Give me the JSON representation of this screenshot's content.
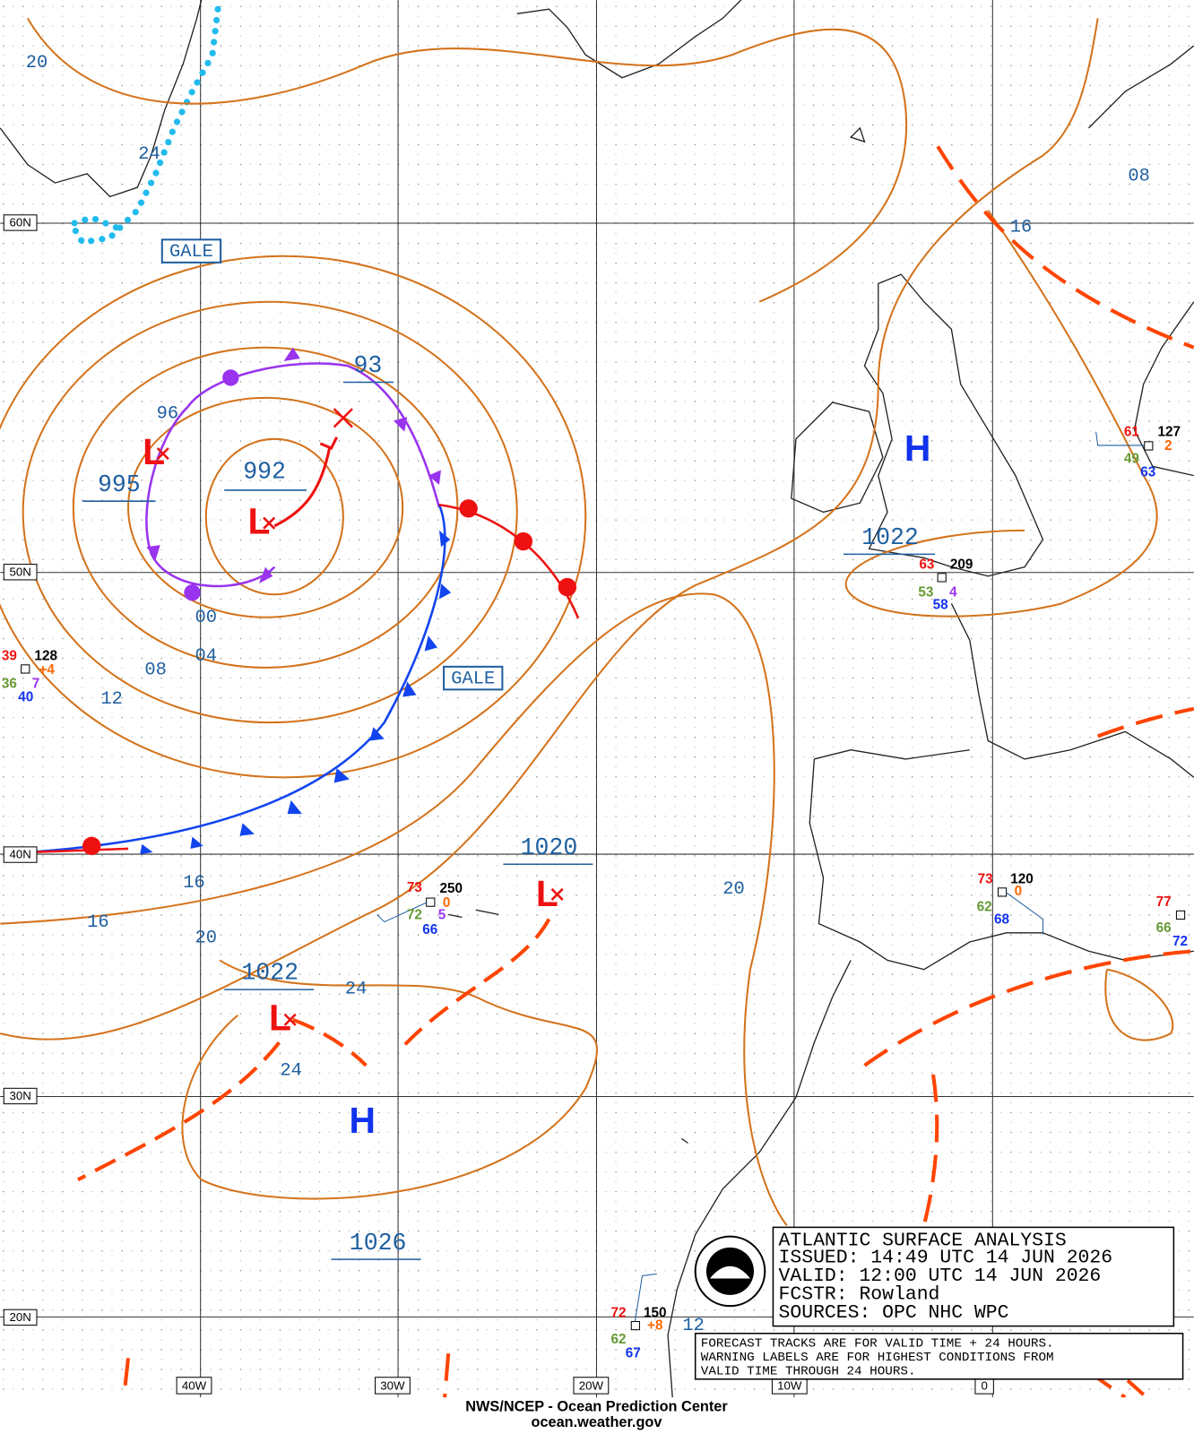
{
  "title_block": [
    "ATLANTIC SURFACE ANALYSIS",
    "ISSUED:  14:49 UTC 14 JUN 2026",
    "VALID:  12:00 UTC 14 JUN 2026",
    "FCSTR:  Rowland",
    "SOURCES:  OPC NHC WPC"
  ],
  "note": [
    "FORECAST TRACKS ARE FOR VALID TIME + 24 HOURS.",
    "WARNING LABELS ARE FOR HIGHEST CONDITIONS FROM",
    "VALID TIME THROUGH 24 HOURS."
  ],
  "footer": [
    "NWS/NCEP - Ocean Prediction Center",
    "ocean.weather.gov"
  ],
  "lat_labels": [
    "60N",
    "50N",
    "40N",
    "30N",
    "20N"
  ],
  "lon_labels": [
    "40W",
    "30W",
    "20W",
    "10W",
    "0"
  ],
  "centers": {
    "highs": [
      "H",
      "H"
    ],
    "lows": [
      "L",
      "L",
      "L",
      "L"
    ]
  },
  "central_pressures": [
    "992",
    "995",
    "1022",
    "1020",
    "1022",
    "1026",
    "93"
  ],
  "isobar_labels": [
    "20",
    "24",
    "96",
    "00",
    "04",
    "08",
    "12",
    "16",
    "16",
    "20",
    "24",
    "24",
    "20",
    "16",
    "08",
    "12"
  ],
  "warnings": [
    "GALE",
    "GALE"
  ],
  "stations": [
    [
      "128",
      "39",
      "+4",
      "36",
      "7",
      "40"
    ],
    [
      "250",
      "73",
      "0",
      "72",
      "5",
      "66"
    ],
    [
      "209",
      "63",
      "4",
      "53",
      "58"
    ],
    [
      "120",
      "73",
      "0",
      "62",
      "68"
    ],
    [
      "127",
      "61",
      "2",
      "49",
      "63"
    ],
    [
      "77",
      "66",
      "72"
    ],
    [
      "150",
      "72",
      "+8",
      "62",
      "67"
    ]
  ]
}
